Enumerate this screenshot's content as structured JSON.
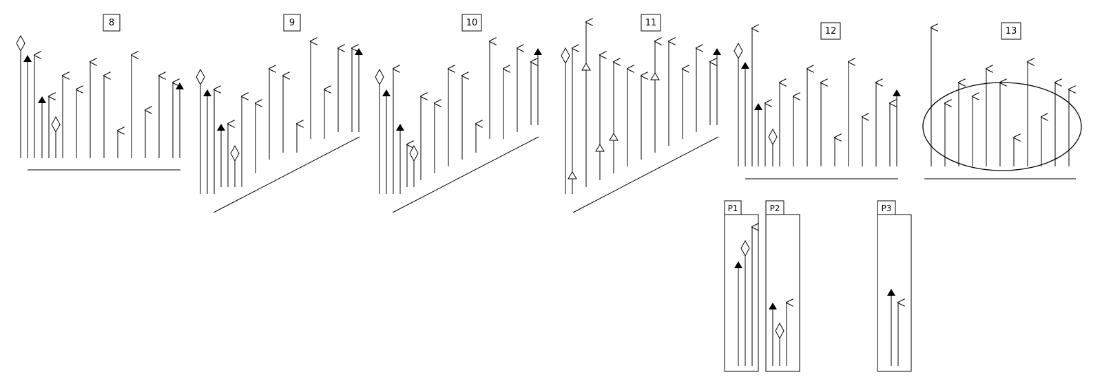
{
  "panels": [
    {
      "label": "8"
    },
    {
      "label": "9"
    },
    {
      "label": "10"
    },
    {
      "label": "11"
    },
    {
      "label": "12"
    },
    {
      "label": "13"
    }
  ],
  "groups": [
    {
      "label": "P1"
    },
    {
      "label": "P2"
    },
    {
      "label": "P3"
    }
  ],
  "marker_types": [
    "open-arrow",
    "filled-triangle",
    "open-diamond",
    "open-triangle"
  ]
}
